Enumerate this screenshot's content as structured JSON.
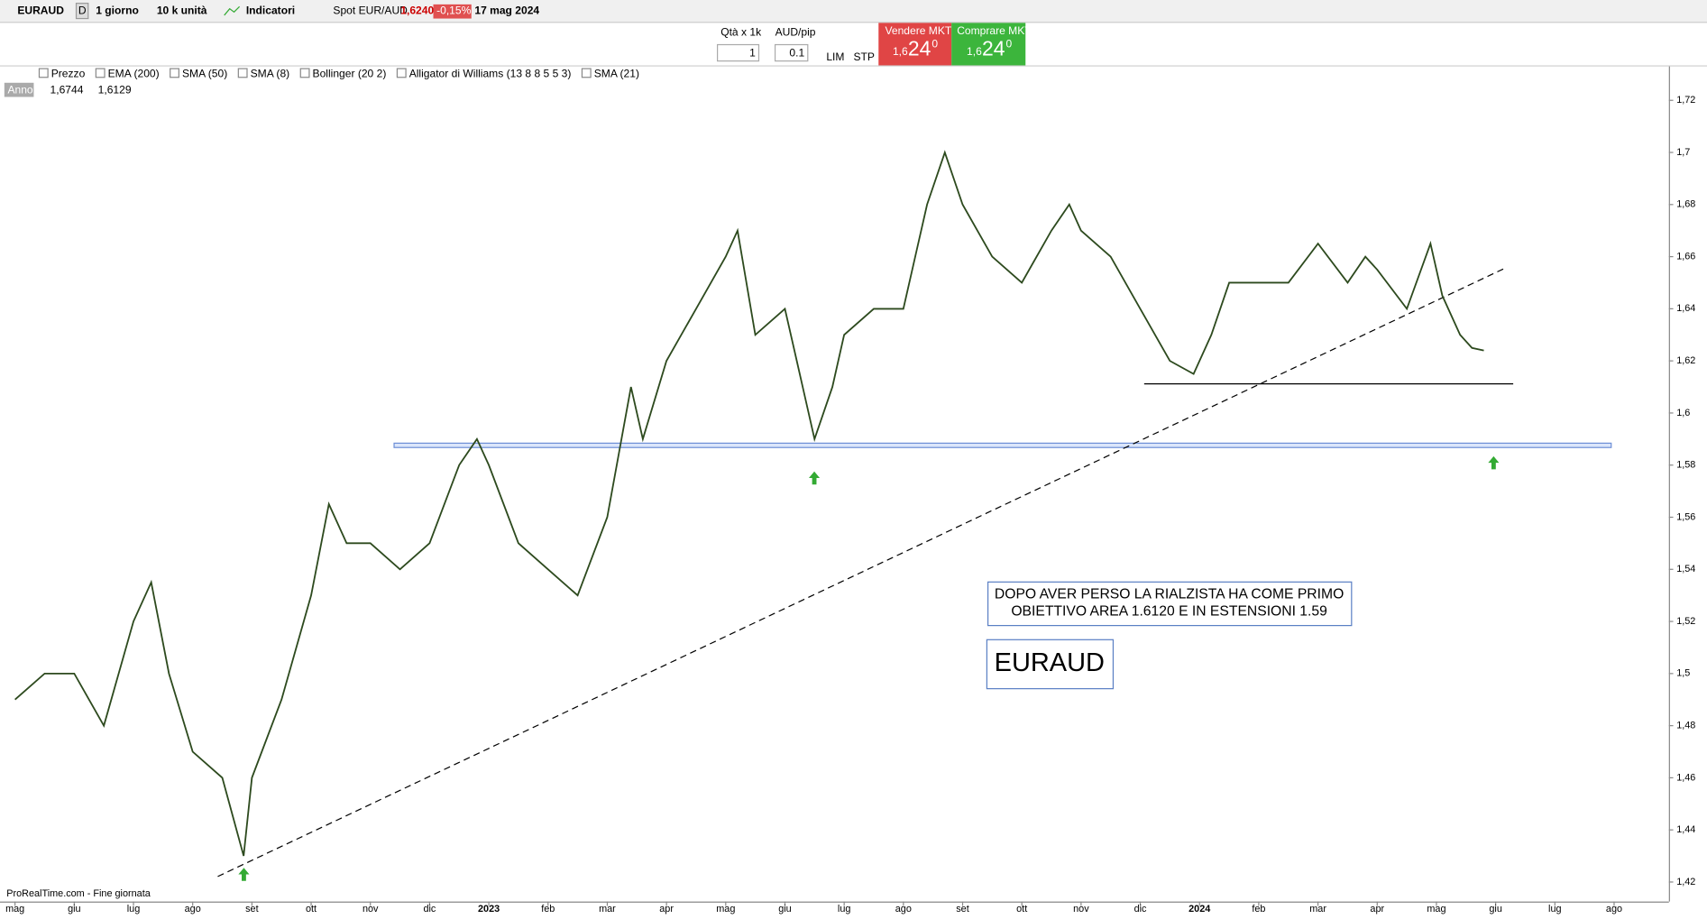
{
  "toolbar": {
    "symbol": "EURAUD",
    "period_icon": "D",
    "period": "1 giorno",
    "units": "10 k unità",
    "indicators": "Indicatori",
    "instrument": "Spot EUR/AUD",
    "price": "1,6240",
    "change": "-0,15%",
    "date": "17 mag 2024"
  },
  "order_panel": {
    "qty_label": "Qtà x 1k",
    "qty": "1",
    "pip_label": "AUD/pip",
    "pip": "0.1",
    "lim": "LIM",
    "stp": "STP",
    "sell": {
      "label": "Vendere MKT",
      "prefix": "1,6",
      "big": "24",
      "sup": "0"
    },
    "buy": {
      "label": "Comprare MKT",
      "prefix": "1,6",
      "big": "24",
      "sup": "0"
    }
  },
  "indicator_bar": [
    "Prezzo",
    "EMA (200)",
    "SMA (50)",
    "SMA (8)",
    "Bollinger (20 2)",
    "Alligator di Williams (13 8 8 5 5 3)",
    "SMA (21)"
  ],
  "range_info": {
    "label": "Anno",
    "high": "1,6744",
    "low": "1,6129"
  },
  "footer": "ProRealTime.com - Fine giornata",
  "chart_data": {
    "type": "line",
    "annotations": [
      "DOPO AVER PERSO LA RIALZISTA HA COME PRIMO",
      "OBIETTIVO AREA 1.6120 E IN ESTENSIONI 1.59",
      "EURAUD"
    ],
    "x": [
      0,
      0.5,
      1,
      1.5,
      2,
      2.3,
      2.6,
      3,
      3.5,
      3.86,
      4,
      4.5,
      5,
      5.3,
      5.6,
      6,
      6.5,
      7,
      7.5,
      7.8,
      8,
      8.5,
      9,
      9.5,
      10,
      10.4,
      10.6,
      11,
      11.5,
      12,
      12.2,
      12.5,
      13,
      13.2,
      13.5,
      13.8,
      14,
      14.5,
      15,
      15.4,
      15.7,
      16,
      16.5,
      17,
      17.5,
      17.8,
      18,
      18.5,
      19,
      19.5,
      19.9,
      20.2,
      20.5,
      21,
      21.5,
      22,
      22.5,
      22.8,
      23,
      23.5,
      23.9,
      24.1,
      24.4,
      24.6,
      24.8
    ],
    "series": [
      {
        "color": "#2d4a1e",
        "values": [
          1.49,
          1.5,
          1.5,
          1.48,
          1.52,
          1.535,
          1.5,
          1.47,
          1.46,
          1.43,
          1.46,
          1.49,
          1.53,
          1.565,
          1.55,
          1.55,
          1.54,
          1.55,
          1.58,
          1.59,
          1.58,
          1.55,
          1.54,
          1.53,
          1.56,
          1.61,
          1.59,
          1.62,
          1.64,
          1.66,
          1.67,
          1.63,
          1.64,
          1.62,
          1.59,
          1.61,
          1.63,
          1.64,
          1.64,
          1.68,
          1.7,
          1.68,
          1.66,
          1.65,
          1.67,
          1.68,
          1.67,
          1.66,
          1.64,
          1.62,
          1.615,
          1.63,
          1.65,
          1.65,
          1.65,
          1.665,
          1.65,
          1.66,
          1.655,
          1.64,
          1.665,
          1.645,
          1.63,
          1.625,
          1.624
        ]
      }
    ],
    "xlim": [
      -0.18,
      27.87
    ],
    "xticks": [
      {
        "value": 0,
        "label": "mag"
      },
      {
        "value": 1,
        "label": "giu"
      },
      {
        "value": 2,
        "label": "lug"
      },
      {
        "value": 3,
        "label": "ago"
      },
      {
        "value": 4,
        "label": "set"
      },
      {
        "value": 5,
        "label": "ott"
      },
      {
        "value": 6,
        "label": "nov"
      },
      {
        "value": 7,
        "label": "dic"
      },
      {
        "value": 8,
        "label": "2023"
      },
      {
        "value": 9,
        "label": "feb"
      },
      {
        "value": 10,
        "label": "mar"
      },
      {
        "value": 11,
        "label": "apr"
      },
      {
        "value": 12,
        "label": "mag"
      },
      {
        "value": 13,
        "label": "giu"
      },
      {
        "value": 14,
        "label": "lug"
      },
      {
        "value": 15,
        "label": "ago"
      },
      {
        "value": 16,
        "label": "set"
      },
      {
        "value": 17,
        "label": "ott"
      },
      {
        "value": 18,
        "label": "nov"
      },
      {
        "value": 19,
        "label": "dic"
      },
      {
        "value": 20,
        "label": "2024"
      },
      {
        "value": 21,
        "label": "feb"
      },
      {
        "value": 22,
        "label": "mar"
      },
      {
        "value": 23,
        "label": "apr"
      },
      {
        "value": 24,
        "label": "mag"
      },
      {
        "value": 25,
        "label": "giu"
      },
      {
        "value": 26,
        "label": "lug"
      },
      {
        "value": 27,
        "label": "ago"
      }
    ],
    "ylim": [
      1.4125,
      1.733
    ],
    "yticks": [
      {
        "value": 1.42,
        "label": "1,42"
      },
      {
        "value": 1.44,
        "label": "1,44"
      },
      {
        "value": 1.46,
        "label": "1,46"
      },
      {
        "value": 1.48,
        "label": "1,48"
      },
      {
        "value": 1.5,
        "label": "1,5"
      },
      {
        "value": 1.52,
        "label": "1,52"
      },
      {
        "value": 1.54,
        "label": "1,54"
      },
      {
        "value": 1.56,
        "label": "1,56"
      },
      {
        "value": 1.58,
        "label": "1,58"
      },
      {
        "value": 1.6,
        "label": "1,6"
      },
      {
        "value": 1.62,
        "label": "1,62"
      },
      {
        "value": 1.64,
        "label": "1,64"
      },
      {
        "value": 1.66,
        "label": "1,66"
      },
      {
        "value": 1.68,
        "label": "1,68"
      },
      {
        "value": 1.7,
        "label": "1,7"
      },
      {
        "value": 1.72,
        "label": "1,72"
      }
    ]
  }
}
